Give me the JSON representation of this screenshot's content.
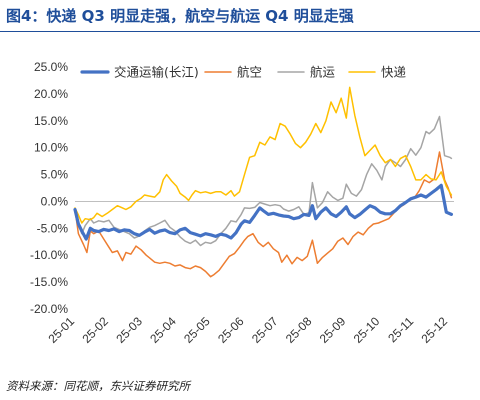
{
  "header": {
    "title": "图4：快递 Q3 明显走强，航空与航运 Q4 明显走强"
  },
  "footer": {
    "source": "资料来源：同花顺，东兴证券研究所"
  },
  "chart_data": {
    "type": "line",
    "title": "",
    "xlabel": "",
    "ylabel": "",
    "ylim": [
      -20,
      25
    ],
    "y_tick_step": 5,
    "y_tick_format": "percent_1dp",
    "grid": false,
    "legend_position": "top",
    "x_tick_labels": [
      "25-01",
      "25-02",
      "25-03",
      "25-04",
      "25-05",
      "25-06",
      "25-07",
      "25-08",
      "25-09",
      "25-10",
      "25-11",
      "25-12"
    ],
    "series": [
      {
        "name": "交通运输(长江)",
        "color": "#4472C4",
        "width": 3.2,
        "points": [
          [
            0.0,
            -1.5
          ],
          [
            0.1,
            -4.2
          ],
          [
            0.2,
            -5.5
          ],
          [
            0.33,
            -7.0
          ],
          [
            0.45,
            -5.0
          ],
          [
            0.55,
            -5.4
          ],
          [
            0.7,
            -5.6
          ],
          [
            0.85,
            -5.2
          ],
          [
            1.0,
            -5.4
          ],
          [
            1.15,
            -5.1
          ],
          [
            1.3,
            -5.6
          ],
          [
            1.45,
            -5.3
          ],
          [
            1.6,
            -5.4
          ],
          [
            1.75,
            -6.0
          ],
          [
            1.9,
            -6.3
          ],
          [
            2.05,
            -5.7
          ],
          [
            2.2,
            -5.2
          ],
          [
            2.35,
            -5.9
          ],
          [
            2.5,
            -5.5
          ],
          [
            2.65,
            -5.3
          ],
          [
            2.8,
            -5.8
          ],
          [
            2.95,
            -6.0
          ],
          [
            3.1,
            -5.3
          ],
          [
            3.25,
            -5.0
          ],
          [
            3.4,
            -5.8
          ],
          [
            3.55,
            -6.1
          ],
          [
            3.7,
            -6.4
          ],
          [
            3.85,
            -6.0
          ],
          [
            4.0,
            -6.2
          ],
          [
            4.15,
            -6.5
          ],
          [
            4.3,
            -6.1
          ],
          [
            4.45,
            -6.3
          ],
          [
            4.6,
            -6.8
          ],
          [
            4.75,
            -5.8
          ],
          [
            4.9,
            -4.2
          ],
          [
            5.0,
            -3.6
          ],
          [
            5.15,
            -3.9
          ],
          [
            5.3,
            -2.6
          ],
          [
            5.45,
            -1.2
          ],
          [
            5.55,
            -1.7
          ],
          [
            5.7,
            -2.4
          ],
          [
            5.85,
            -2.2
          ],
          [
            6.0,
            -2.5
          ],
          [
            6.15,
            -2.7
          ],
          [
            6.3,
            -2.8
          ],
          [
            6.45,
            -3.2
          ],
          [
            6.6,
            -3.0
          ],
          [
            6.75,
            -2.4
          ],
          [
            6.9,
            -2.6
          ],
          [
            7.0,
            -0.8
          ],
          [
            7.1,
            -3.2
          ],
          [
            7.25,
            -2.0
          ],
          [
            7.4,
            -1.2
          ],
          [
            7.55,
            -2.3
          ],
          [
            7.7,
            -2.8
          ],
          [
            7.85,
            -2.0
          ],
          [
            8.0,
            -1.0
          ],
          [
            8.1,
            -2.3
          ],
          [
            8.25,
            -3.0
          ],
          [
            8.4,
            -2.4
          ],
          [
            8.55,
            -1.6
          ],
          [
            8.7,
            -0.8
          ],
          [
            8.85,
            -1.2
          ],
          [
            9.0,
            -2.0
          ],
          [
            9.15,
            -2.3
          ],
          [
            9.3,
            -2.3
          ],
          [
            9.45,
            -1.7
          ],
          [
            9.6,
            -0.8
          ],
          [
            9.75,
            -0.2
          ],
          [
            9.9,
            0.5
          ],
          [
            10.05,
            0.8
          ],
          [
            10.2,
            1.2
          ],
          [
            10.35,
            0.8
          ],
          [
            10.5,
            1.5
          ],
          [
            10.65,
            2.2
          ],
          [
            10.8,
            3.0
          ],
          [
            10.95,
            -2.0
          ],
          [
            11.1,
            -2.4
          ]
        ]
      },
      {
        "name": "航空",
        "color": "#ED7D31",
        "width": 1.5,
        "points": [
          [
            0.0,
            -1.5
          ],
          [
            0.1,
            -6.0
          ],
          [
            0.25,
            -8.0
          ],
          [
            0.35,
            -9.5
          ],
          [
            0.45,
            -5.5
          ],
          [
            0.55,
            -6.0
          ],
          [
            0.7,
            -5.5
          ],
          [
            0.85,
            -7.0
          ],
          [
            1.0,
            -8.5
          ],
          [
            1.1,
            -9.5
          ],
          [
            1.25,
            -9.2
          ],
          [
            1.4,
            -11.0
          ],
          [
            1.5,
            -9.5
          ],
          [
            1.65,
            -9.8
          ],
          [
            1.8,
            -8.3
          ],
          [
            1.95,
            -9.0
          ],
          [
            2.1,
            -10.0
          ],
          [
            2.2,
            -10.5
          ],
          [
            2.35,
            -11.3
          ],
          [
            2.5,
            -11.5
          ],
          [
            2.65,
            -11.3
          ],
          [
            2.8,
            -11.5
          ],
          [
            2.95,
            -12.0
          ],
          [
            3.1,
            -11.8
          ],
          [
            3.25,
            -12.3
          ],
          [
            3.4,
            -12.5
          ],
          [
            3.55,
            -12.0
          ],
          [
            3.7,
            -12.3
          ],
          [
            3.85,
            -13.0
          ],
          [
            4.0,
            -14.0
          ],
          [
            4.1,
            -13.6
          ],
          [
            4.25,
            -12.8
          ],
          [
            4.4,
            -11.5
          ],
          [
            4.55,
            -10.2
          ],
          [
            4.7,
            -9.7
          ],
          [
            4.85,
            -8.5
          ],
          [
            5.0,
            -7.2
          ],
          [
            5.1,
            -6.5
          ],
          [
            5.25,
            -6.0
          ],
          [
            5.4,
            -7.6
          ],
          [
            5.55,
            -8.4
          ],
          [
            5.7,
            -7.6
          ],
          [
            5.85,
            -8.8
          ],
          [
            6.0,
            -9.5
          ],
          [
            6.1,
            -11.3
          ],
          [
            6.25,
            -10.0
          ],
          [
            6.4,
            -11.6
          ],
          [
            6.55,
            -10.4
          ],
          [
            6.7,
            -11.0
          ],
          [
            6.85,
            -10.2
          ],
          [
            7.0,
            -7.2
          ],
          [
            7.15,
            -11.5
          ],
          [
            7.3,
            -10.4
          ],
          [
            7.45,
            -9.6
          ],
          [
            7.6,
            -8.8
          ],
          [
            7.75,
            -7.4
          ],
          [
            7.9,
            -6.8
          ],
          [
            8.05,
            -8.0
          ],
          [
            8.2,
            -6.5
          ],
          [
            8.35,
            -5.7
          ],
          [
            8.5,
            -6.2
          ],
          [
            8.65,
            -5.0
          ],
          [
            8.8,
            -4.2
          ],
          [
            8.95,
            -4.0
          ],
          [
            9.1,
            -3.6
          ],
          [
            9.25,
            -3.2
          ],
          [
            9.4,
            -2.2
          ],
          [
            9.55,
            -1.2
          ],
          [
            9.7,
            -0.6
          ],
          [
            9.85,
            0.2
          ],
          [
            10.0,
            0.6
          ],
          [
            10.15,
            2.0
          ],
          [
            10.3,
            4.0
          ],
          [
            10.45,
            3.5
          ],
          [
            10.6,
            4.2
          ],
          [
            10.75,
            9.2
          ],
          [
            10.9,
            4.0
          ],
          [
            11.0,
            2.6
          ],
          [
            11.1,
            0.7
          ]
        ]
      },
      {
        "name": "航运",
        "color": "#A5A5A5",
        "width": 1.5,
        "points": [
          [
            0.0,
            -1.8
          ],
          [
            0.1,
            -4.2
          ],
          [
            0.2,
            -6.0
          ],
          [
            0.3,
            -4.5
          ],
          [
            0.45,
            -3.2
          ],
          [
            0.55,
            -4.0
          ],
          [
            0.7,
            -3.6
          ],
          [
            0.85,
            -3.8
          ],
          [
            1.0,
            -3.5
          ],
          [
            1.15,
            -4.8
          ],
          [
            1.3,
            -5.2
          ],
          [
            1.45,
            -5.6
          ],
          [
            1.6,
            -6.0
          ],
          [
            1.75,
            -6.8
          ],
          [
            1.9,
            -6.4
          ],
          [
            2.05,
            -5.5
          ],
          [
            2.2,
            -4.8
          ],
          [
            2.35,
            -4.5
          ],
          [
            2.5,
            -4.0
          ],
          [
            2.65,
            -3.5
          ],
          [
            2.8,
            -4.8
          ],
          [
            2.95,
            -5.5
          ],
          [
            3.1,
            -6.6
          ],
          [
            3.25,
            -7.4
          ],
          [
            3.4,
            -7.8
          ],
          [
            3.55,
            -7.2
          ],
          [
            3.7,
            -8.2
          ],
          [
            3.85,
            -7.6
          ],
          [
            4.0,
            -7.8
          ],
          [
            4.15,
            -7.3
          ],
          [
            4.3,
            -6.0
          ],
          [
            4.45,
            -5.0
          ],
          [
            4.6,
            -3.6
          ],
          [
            4.75,
            -3.8
          ],
          [
            4.9,
            -2.4
          ],
          [
            5.0,
            -1.2
          ],
          [
            5.15,
            -1.3
          ],
          [
            5.3,
            -1.1
          ],
          [
            5.45,
            -0.2
          ],
          [
            5.6,
            -0.5
          ],
          [
            5.75,
            -0.8
          ],
          [
            5.9,
            -0.6
          ],
          [
            6.05,
            -0.8
          ],
          [
            6.15,
            -1.4
          ],
          [
            6.3,
            -1.8
          ],
          [
            6.45,
            -1.5
          ],
          [
            6.6,
            -1.0
          ],
          [
            6.75,
            -2.4
          ],
          [
            6.9,
            -2.1
          ],
          [
            7.0,
            3.5
          ],
          [
            7.15,
            -1.2
          ],
          [
            7.3,
            -0.2
          ],
          [
            7.45,
            1.8
          ],
          [
            7.6,
            0.8
          ],
          [
            7.75,
            0.2
          ],
          [
            7.9,
            0.6
          ],
          [
            8.0,
            3.2
          ],
          [
            8.15,
            1.5
          ],
          [
            8.3,
            1.0
          ],
          [
            8.45,
            2.2
          ],
          [
            8.6,
            5.0
          ],
          [
            8.75,
            7.0
          ],
          [
            8.9,
            5.8
          ],
          [
            9.05,
            4.0
          ],
          [
            9.15,
            6.5
          ],
          [
            9.3,
            7.8
          ],
          [
            9.45,
            7.2
          ],
          [
            9.6,
            6.5
          ],
          [
            9.75,
            7.8
          ],
          [
            9.9,
            9.8
          ],
          [
            10.05,
            8.6
          ],
          [
            10.2,
            10.0
          ],
          [
            10.35,
            13.0
          ],
          [
            10.45,
            12.6
          ],
          [
            10.6,
            13.5
          ],
          [
            10.75,
            15.8
          ],
          [
            10.9,
            8.5
          ],
          [
            11.05,
            8.2
          ],
          [
            11.1,
            8.0
          ]
        ]
      },
      {
        "name": "快递",
        "color": "#FFC000",
        "width": 1.5,
        "points": [
          [
            0.0,
            -1.2
          ],
          [
            0.1,
            -2.5
          ],
          [
            0.2,
            -4.0
          ],
          [
            0.3,
            -3.2
          ],
          [
            0.45,
            -3.4
          ],
          [
            0.55,
            -3.0
          ],
          [
            0.65,
            -2.2
          ],
          [
            0.8,
            -2.8
          ],
          [
            0.95,
            -2.2
          ],
          [
            1.1,
            -1.5
          ],
          [
            1.25,
            -0.8
          ],
          [
            1.4,
            -1.2
          ],
          [
            1.5,
            -1.5
          ],
          [
            1.65,
            -1.0
          ],
          [
            1.8,
            0.0
          ],
          [
            1.95,
            0.6
          ],
          [
            2.05,
            1.2
          ],
          [
            2.2,
            1.0
          ],
          [
            2.35,
            0.8
          ],
          [
            2.5,
            1.8
          ],
          [
            2.6,
            4.0
          ],
          [
            2.7,
            5.0
          ],
          [
            2.85,
            3.8
          ],
          [
            3.0,
            2.8
          ],
          [
            3.1,
            1.5
          ],
          [
            3.25,
            0.8
          ],
          [
            3.35,
            0.2
          ],
          [
            3.45,
            1.2
          ],
          [
            3.55,
            2.0
          ],
          [
            3.7,
            1.6
          ],
          [
            3.85,
            1.8
          ],
          [
            4.0,
            1.5
          ],
          [
            4.15,
            1.8
          ],
          [
            4.3,
            1.8
          ],
          [
            4.45,
            1.2
          ],
          [
            4.6,
            2.0
          ],
          [
            4.7,
            1.0
          ],
          [
            4.85,
            1.8
          ],
          [
            5.0,
            5.0
          ],
          [
            5.15,
            8.2
          ],
          [
            5.3,
            8.5
          ],
          [
            5.45,
            11.0
          ],
          [
            5.6,
            10.5
          ],
          [
            5.75,
            12.0
          ],
          [
            5.9,
            11.5
          ],
          [
            6.05,
            14.5
          ],
          [
            6.2,
            14.0
          ],
          [
            6.35,
            12.5
          ],
          [
            6.5,
            10.8
          ],
          [
            6.65,
            10.0
          ],
          [
            6.8,
            11.0
          ],
          [
            6.95,
            12.5
          ],
          [
            7.1,
            14.5
          ],
          [
            7.25,
            12.8
          ],
          [
            7.4,
            15.0
          ],
          [
            7.55,
            18.5
          ],
          [
            7.7,
            16.5
          ],
          [
            7.85,
            19.2
          ],
          [
            8.0,
            15.5
          ],
          [
            8.1,
            21.2
          ],
          [
            8.25,
            16.0
          ],
          [
            8.4,
            12.0
          ],
          [
            8.55,
            8.5
          ],
          [
            8.7,
            9.5
          ],
          [
            8.85,
            10.5
          ],
          [
            9.0,
            8.5
          ],
          [
            9.15,
            7.2
          ],
          [
            9.3,
            7.8
          ],
          [
            9.45,
            6.5
          ],
          [
            9.6,
            8.0
          ],
          [
            9.75,
            8.5
          ],
          [
            9.9,
            6.5
          ],
          [
            10.05,
            4.0
          ],
          [
            10.2,
            4.0
          ],
          [
            10.35,
            5.0
          ],
          [
            10.5,
            4.2
          ],
          [
            10.65,
            4.0
          ],
          [
            10.8,
            5.5
          ],
          [
            10.95,
            2.8
          ],
          [
            11.1,
            1.2
          ]
        ]
      }
    ]
  }
}
